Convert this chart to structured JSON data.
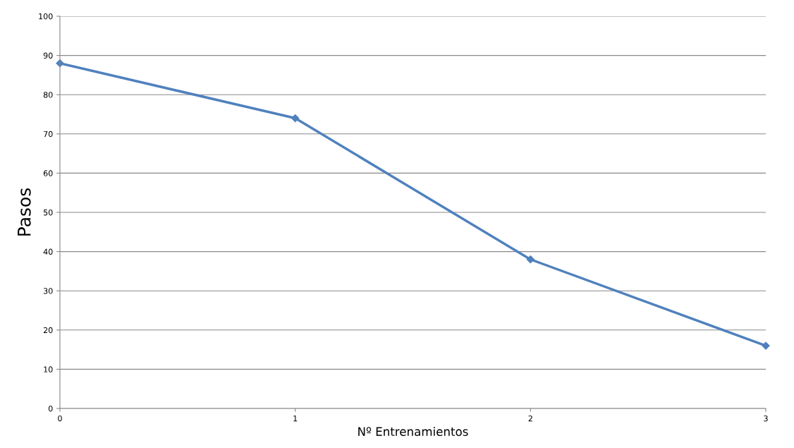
{
  "chart_data": {
    "type": "line",
    "xlabel": "Nº Entrenamientos",
    "ylabel": "Pasos",
    "x": [
      0,
      1,
      2,
      3
    ],
    "series": [
      {
        "color": "#4f81bd",
        "values": [
          88,
          74,
          38,
          16
        ]
      }
    ],
    "xlim": [
      0,
      3
    ],
    "xticks": [
      0,
      1,
      2,
      3
    ],
    "ylim": [
      0,
      100
    ],
    "yticks": [
      0,
      10,
      20,
      30,
      40,
      50,
      60,
      70,
      80,
      90,
      100
    ],
    "grid": "y",
    "marker": "diamond",
    "line_style": "solid"
  }
}
